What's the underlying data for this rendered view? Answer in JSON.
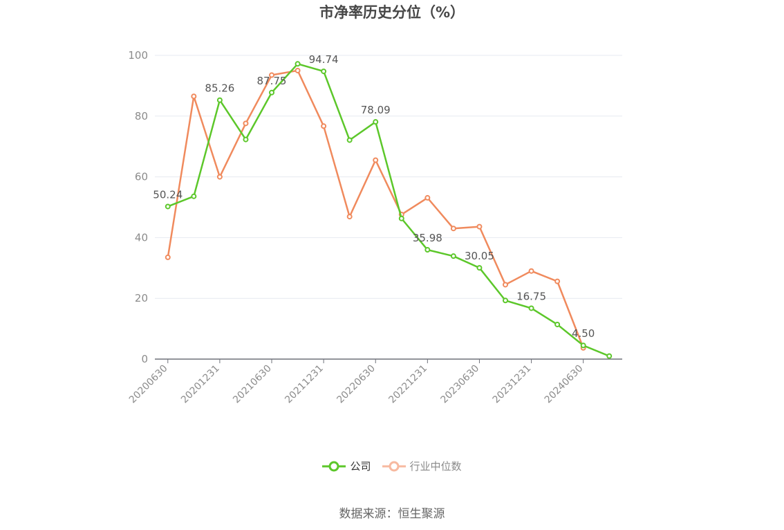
{
  "title": "市净率历史分位（%）",
  "source": "数据来源：恒生聚源",
  "legend": {
    "company": "公司",
    "industry": "行业中位数"
  },
  "colors": {
    "company": "#5cc72a",
    "industry": "#f08a5d",
    "industry_legend": "#f7b9a0",
    "grid": "#e6e9f0",
    "axis": "#6e7079",
    "tick_text": "#8c8c8c",
    "label_text": "#555555"
  },
  "chart_data": {
    "type": "line",
    "title": "市净率历史分位（%）",
    "x": [
      "20200630",
      "20200930",
      "20201231",
      "20210331",
      "20210630",
      "20210930",
      "20211231",
      "20220331",
      "20220630",
      "20220930",
      "20221231",
      "20230331",
      "20230630",
      "20230930",
      "20231231",
      "20240331",
      "20240630",
      "20240930"
    ],
    "x_tick_labels": [
      "20200630",
      "20201231",
      "20210630",
      "20211231",
      "20220630",
      "20221231",
      "20230630",
      "20231231",
      "20240630"
    ],
    "y_ticks": [
      "0",
      "20",
      "40",
      "60",
      "80",
      "100"
    ],
    "ylim": [
      0,
      100
    ],
    "grid": true,
    "legend_position": "bottom",
    "series": [
      {
        "name": "公司",
        "values": [
          50.24,
          53.6,
          85.26,
          72.3,
          87.75,
          97.2,
          94.74,
          72.1,
          78.09,
          46.3,
          35.98,
          33.9,
          30.05,
          19.3,
          16.75,
          11.4,
          4.5,
          1.0
        ]
      },
      {
        "name": "行业中位数",
        "values": [
          33.5,
          86.5,
          60.0,
          77.6,
          93.5,
          95.0,
          76.7,
          46.9,
          65.5,
          47.6,
          53.1,
          43.0,
          43.6,
          24.5,
          29.0,
          25.6,
          3.7,
          null
        ]
      }
    ],
    "data_labels": [
      {
        "series": 0,
        "index": 0,
        "text": "50.24"
      },
      {
        "series": 0,
        "index": 2,
        "text": "85.26"
      },
      {
        "series": 0,
        "index": 4,
        "text": "87.75"
      },
      {
        "series": 0,
        "index": 6,
        "text": "94.74"
      },
      {
        "series": 0,
        "index": 8,
        "text": "78.09"
      },
      {
        "series": 0,
        "index": 10,
        "text": "35.98"
      },
      {
        "series": 0,
        "index": 12,
        "text": "30.05"
      },
      {
        "series": 0,
        "index": 14,
        "text": "16.75"
      },
      {
        "series": 0,
        "index": 16,
        "text": "4.50"
      }
    ]
  }
}
